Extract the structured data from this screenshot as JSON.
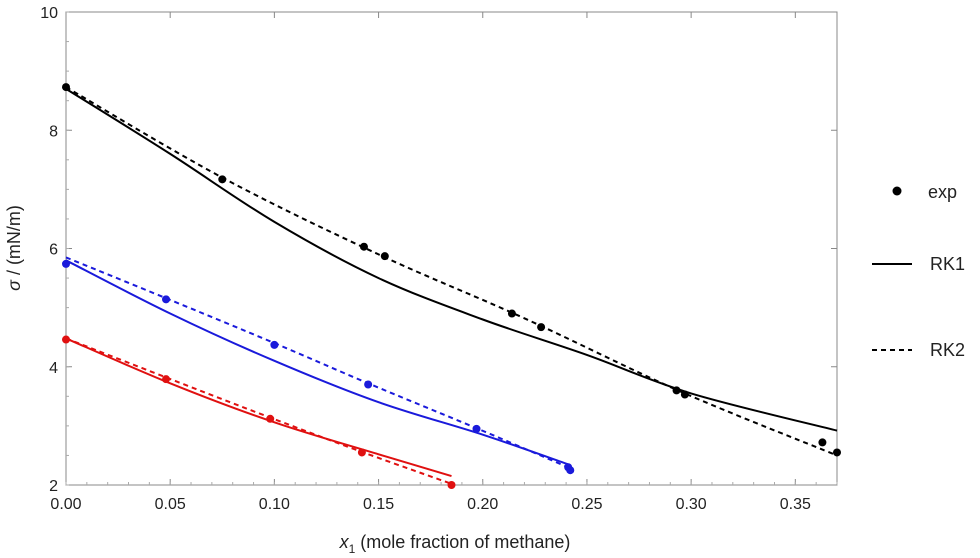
{
  "chart_data": {
    "type": "line",
    "xlabel_sub": "1",
    "xlabel_rest": " (mole fraction of methane)",
    "ylabel_rest": " / (mN/m)",
    "xlim": [
      0,
      0.37
    ],
    "ylim": [
      2,
      10
    ],
    "xticks": [
      "0.00",
      "0.05",
      "0.10",
      "0.15",
      "0.20",
      "0.25",
      "0.30",
      "0.35"
    ],
    "yticks": [
      "2",
      "4",
      "6",
      "8",
      "10"
    ],
    "grid": false,
    "legend_position": "right",
    "legend": [
      {
        "label": "exp",
        "kind": "marker"
      },
      {
        "label": "RK1",
        "kind": "solid"
      },
      {
        "label": "RK2",
        "kind": "dashed"
      }
    ],
    "groups": [
      {
        "color": "#000000",
        "exp": [
          [
            0.0,
            8.73
          ],
          [
            0.075,
            7.17
          ],
          [
            0.143,
            6.03
          ],
          [
            0.153,
            5.87
          ],
          [
            0.214,
            4.9
          ],
          [
            0.228,
            4.67
          ],
          [
            0.293,
            3.6
          ],
          [
            0.297,
            3.53
          ],
          [
            0.363,
            2.72
          ],
          [
            0.37,
            2.55
          ]
        ],
        "rk1": [
          [
            0.0,
            8.7
          ],
          [
            0.05,
            7.6
          ],
          [
            0.1,
            6.45
          ],
          [
            0.15,
            5.5
          ],
          [
            0.2,
            4.8
          ],
          [
            0.25,
            4.2
          ],
          [
            0.3,
            3.55
          ],
          [
            0.37,
            2.92
          ]
        ],
        "rk2": [
          [
            0.0,
            8.73
          ],
          [
            0.075,
            7.2
          ],
          [
            0.15,
            5.9
          ],
          [
            0.22,
            4.82
          ],
          [
            0.295,
            3.58
          ],
          [
            0.37,
            2.5
          ]
        ]
      },
      {
        "color": "#1a1adb",
        "exp": [
          [
            0.0,
            5.74
          ],
          [
            0.048,
            5.14
          ],
          [
            0.1,
            4.37
          ],
          [
            0.145,
            3.7
          ],
          [
            0.197,
            2.95
          ],
          [
            0.241,
            2.3
          ],
          [
            0.242,
            2.25
          ]
        ],
        "rk1": [
          [
            0.0,
            5.8
          ],
          [
            0.05,
            4.9
          ],
          [
            0.1,
            4.1
          ],
          [
            0.15,
            3.4
          ],
          [
            0.2,
            2.85
          ],
          [
            0.241,
            2.35
          ]
        ],
        "rk2": [
          [
            0.0,
            5.85
          ],
          [
            0.048,
            5.16
          ],
          [
            0.1,
            4.4
          ],
          [
            0.145,
            3.72
          ],
          [
            0.197,
            2.96
          ],
          [
            0.241,
            2.3
          ]
        ]
      },
      {
        "color": "#e01010",
        "exp": [
          [
            0.0,
            4.46
          ],
          [
            0.048,
            3.79
          ],
          [
            0.098,
            3.12
          ],
          [
            0.142,
            2.55
          ],
          [
            0.185,
            2.0
          ]
        ],
        "rk1": [
          [
            0.0,
            4.48
          ],
          [
            0.05,
            3.72
          ],
          [
            0.1,
            3.06
          ],
          [
            0.15,
            2.52
          ],
          [
            0.185,
            2.15
          ]
        ],
        "rk2": [
          [
            0.0,
            4.48
          ],
          [
            0.048,
            3.82
          ],
          [
            0.098,
            3.14
          ],
          [
            0.142,
            2.56
          ],
          [
            0.185,
            2.02
          ]
        ]
      }
    ]
  }
}
